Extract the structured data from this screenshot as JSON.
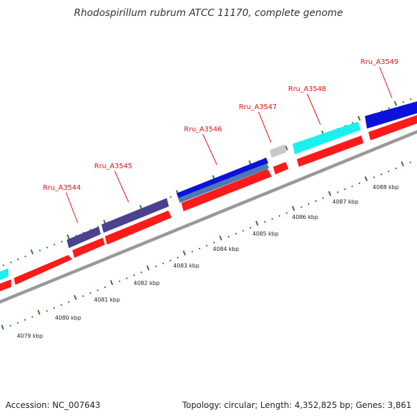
{
  "title": "Rhodospirillum rubrum ATCC 11170, complete genome",
  "footer": {
    "accession": "Accession: NC_007643",
    "topology": "Topology: circular; Length: 4,352,825 bp; Genes: 3,861"
  },
  "colors": {
    "gene_red": "#ff1a1a",
    "dark_blue": "#0b12d9",
    "slate": "#4a428f",
    "cyan": "#19f0f0",
    "steel": "#4d79b3",
    "grey": "#c8c8c8",
    "tick_green": "#2a7a2a",
    "label_red": "#e01010"
  },
  "gene_labels": [
    "Rru_A3544",
    "Rru_A3545",
    "Rru_A3546",
    "Rru_A3547",
    "Rru_A3548",
    "Rru_A3549"
  ],
  "kbp_labels": [
    "4079 kbp",
    "4080 kbp",
    "4081 kbp",
    "4082 kbp",
    "4083 kbp",
    "4084 kbp",
    "4085 kbp",
    "4086 kbp",
    "4087 kbp",
    "4088 kbp"
  ]
}
